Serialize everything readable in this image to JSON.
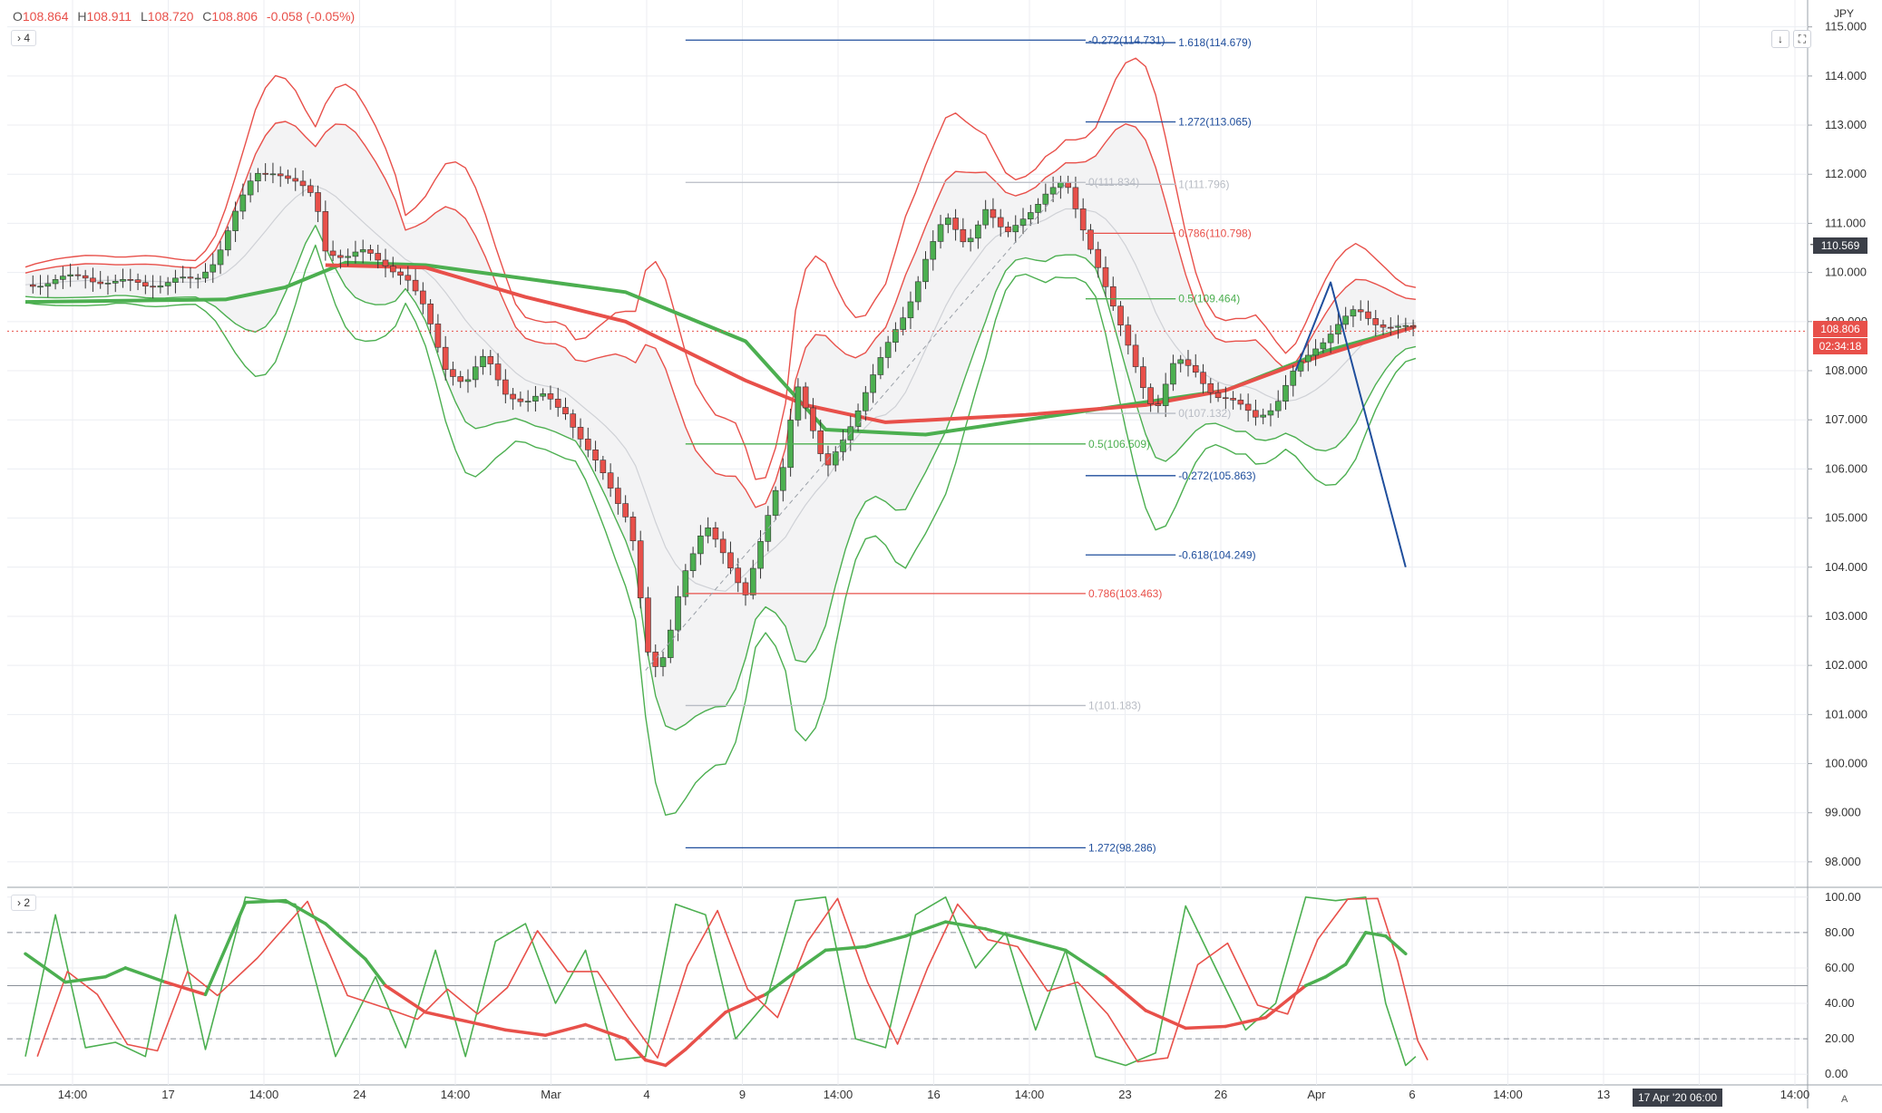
{
  "header": {
    "ohlc": {
      "o_label": "O",
      "o": "108.864",
      "h_label": "H",
      "h": "108.911",
      "l_label": "L",
      "l": "108.720",
      "c_label": "C",
      "c": "108.806",
      "change": "-0.058 (-0.05%)"
    },
    "main_pane_tag": "4",
    "osc_pane_tag": "2",
    "currency": "JPY",
    "down_arrow_icon": "arrow-down-icon",
    "fullscreen_icon": "fullscreen-icon"
  },
  "price_tags": {
    "crosshair_price": "110.569",
    "last_price": "108.806",
    "countdown": "02:34:18"
  },
  "time_tags": {
    "date": "17 Apr '20",
    "time": "06:00"
  },
  "corner_label": "A",
  "colors": {
    "bull": "#4caf50",
    "bear": "#e8504a",
    "fib_blue": "#1f4e9c",
    "fib_red": "#e8504a",
    "fib_green": "#4caf50",
    "fib_gray": "#b8bcc4",
    "grid": "#eceef2"
  },
  "chart_data": [
    {
      "type": "candlestick",
      "title": "",
      "ylim": [
        97.5,
        115.4
      ],
      "y_ticks": [
        "98.000",
        "99.000",
        "100.000",
        "101.000",
        "102.000",
        "103.000",
        "104.000",
        "105.000",
        "106.000",
        "107.000",
        "108.000",
        "109.000",
        "110.000",
        "111.000",
        "112.000",
        "113.000",
        "114.000",
        "115.000"
      ],
      "x_tick_labels": [
        "14:00",
        "17",
        "14:00",
        "24",
        "14:00",
        "Mar",
        "4",
        "9",
        "14:00",
        "16",
        "14:00",
        "23",
        "26",
        "Apr",
        "6",
        "14:00",
        "13",
        "14:00",
        "14:00"
      ],
      "price_path": [
        {
          "t": 0,
          "p": 109.75
        },
        {
          "t": 3,
          "p": 109.85
        },
        {
          "t": 6,
          "p": 109.9
        },
        {
          "t": 9,
          "p": 109.8
        },
        {
          "t": 12,
          "p": 109.75
        },
        {
          "t": 15,
          "p": 109.85
        },
        {
          "t": 17,
          "p": 109.8
        },
        {
          "t": 19,
          "p": 110.3
        },
        {
          "t": 21,
          "p": 111.2
        },
        {
          "t": 23,
          "p": 112.0
        },
        {
          "t": 25,
          "p": 112.1
        },
        {
          "t": 27,
          "p": 111.8
        },
        {
          "t": 29,
          "p": 111.5
        },
        {
          "t": 30,
          "p": 110.5
        },
        {
          "t": 32,
          "p": 110.3
        },
        {
          "t": 34,
          "p": 110.4
        },
        {
          "t": 36,
          "p": 110.2
        },
        {
          "t": 38,
          "p": 109.9
        },
        {
          "t": 40,
          "p": 109.2
        },
        {
          "t": 42,
          "p": 108.1
        },
        {
          "t": 44,
          "p": 107.7
        },
        {
          "t": 46,
          "p": 108.3
        },
        {
          "t": 48,
          "p": 107.6
        },
        {
          "t": 50,
          "p": 107.3
        },
        {
          "t": 52,
          "p": 107.5
        },
        {
          "t": 54,
          "p": 107.2
        },
        {
          "t": 56,
          "p": 106.4
        },
        {
          "t": 58,
          "p": 105.8
        },
        {
          "t": 60,
          "p": 105.1
        },
        {
          "t": 61,
          "p": 104.4
        },
        {
          "t": 62,
          "p": 102.3
        },
        {
          "t": 63,
          "p": 101.9
        },
        {
          "t": 64,
          "p": 102.2
        },
        {
          "t": 65,
          "p": 103.3
        },
        {
          "t": 66,
          "p": 104.0
        },
        {
          "t": 68,
          "p": 104.8
        },
        {
          "t": 70,
          "p": 104.2
        },
        {
          "t": 72,
          "p": 103.5
        },
        {
          "t": 74,
          "p": 104.8
        },
        {
          "t": 76,
          "p": 106.2
        },
        {
          "t": 77,
          "p": 107.9
        },
        {
          "t": 78,
          "p": 107.3
        },
        {
          "t": 80,
          "p": 105.9
        },
        {
          "t": 82,
          "p": 106.7
        },
        {
          "t": 84,
          "p": 107.6
        },
        {
          "t": 86,
          "p": 108.4
        },
        {
          "t": 88,
          "p": 109.2
        },
        {
          "t": 90,
          "p": 110.3
        },
        {
          "t": 92,
          "p": 111.1
        },
        {
          "t": 94,
          "p": 110.6
        },
        {
          "t": 96,
          "p": 111.3
        },
        {
          "t": 98,
          "p": 110.7
        },
        {
          "t": 100,
          "p": 111.2
        },
        {
          "t": 102,
          "p": 111.6
        },
        {
          "t": 104,
          "p": 111.8
        },
        {
          "t": 105,
          "p": 111.3
        },
        {
          "t": 107,
          "p": 110.3
        },
        {
          "t": 109,
          "p": 109.1
        },
        {
          "t": 111,
          "p": 108.1
        },
        {
          "t": 112,
          "p": 107.6
        },
        {
          "t": 113,
          "p": 107.2
        },
        {
          "t": 115,
          "p": 108.2
        },
        {
          "t": 117,
          "p": 108.0
        },
        {
          "t": 119,
          "p": 107.5
        },
        {
          "t": 121,
          "p": 107.3
        },
        {
          "t": 123,
          "p": 107.1
        },
        {
          "t": 125,
          "p": 107.3
        },
        {
          "t": 127,
          "p": 108.0
        },
        {
          "t": 129,
          "p": 108.5
        },
        {
          "t": 131,
          "p": 108.9
        },
        {
          "t": 133,
          "p": 109.2
        },
        {
          "t": 135,
          "p": 109.0
        },
        {
          "t": 137,
          "p": 108.9
        },
        {
          "t": 139,
          "p": 108.8
        }
      ],
      "ma_red": [
        {
          "t": 30,
          "p": 110.15
        },
        {
          "t": 40,
          "p": 110.1
        },
        {
          "t": 50,
          "p": 109.5
        },
        {
          "t": 60,
          "p": 109.0
        },
        {
          "t": 66,
          "p": 108.4
        },
        {
          "t": 72,
          "p": 107.8
        },
        {
          "t": 78,
          "p": 107.3
        },
        {
          "t": 86,
          "p": 106.95
        },
        {
          "t": 100,
          "p": 107.1
        },
        {
          "t": 112,
          "p": 107.3
        },
        {
          "t": 120,
          "p": 107.6
        },
        {
          "t": 128,
          "p": 108.2
        },
        {
          "t": 139,
          "p": 108.9
        }
      ],
      "ma_green": [
        {
          "t": 0,
          "p": 109.4
        },
        {
          "t": 20,
          "p": 109.45
        },
        {
          "t": 26,
          "p": 109.7
        },
        {
          "t": 32,
          "p": 110.2
        },
        {
          "t": 40,
          "p": 110.15
        },
        {
          "t": 60,
          "p": 109.6
        },
        {
          "t": 72,
          "p": 108.6
        },
        {
          "t": 80,
          "p": 106.8
        },
        {
          "t": 90,
          "p": 106.7
        },
        {
          "t": 100,
          "p": 107.0
        },
        {
          "t": 110,
          "p": 107.3
        },
        {
          "t": 120,
          "p": 107.6
        },
        {
          "t": 130,
          "p": 108.4
        },
        {
          "t": 139,
          "p": 108.9
        }
      ],
      "fib_levels": [
        {
          "label": "-0.272(114.731)",
          "value": 114.731,
          "color": "blue",
          "t0": 66,
          "t1": 106
        },
        {
          "label": "1.618(114.679)",
          "value": 114.679,
          "color": "blue",
          "t0": 106,
          "t1": 115
        },
        {
          "label": "1.272(113.065)",
          "value": 113.065,
          "color": "blue",
          "t0": 106,
          "t1": 115
        },
        {
          "label": "0(111.834)",
          "value": 111.834,
          "color": "gray",
          "t0": 66,
          "t1": 106
        },
        {
          "label": "1(111.796)",
          "value": 111.796,
          "color": "gray",
          "t0": 106,
          "t1": 115
        },
        {
          "label": "0.786(110.798)",
          "value": 110.798,
          "color": "red",
          "t0": 106,
          "t1": 115
        },
        {
          "label": "0.5(109.464)",
          "value": 109.464,
          "color": "green",
          "t0": 106,
          "t1": 115
        },
        {
          "label": "0(107.132)",
          "value": 107.132,
          "color": "gray",
          "t0": 106,
          "t1": 115
        },
        {
          "label": "0.5(106.509)",
          "value": 106.509,
          "color": "green",
          "t0": 66,
          "t1": 106
        },
        {
          "label": "-0.272(105.863)",
          "value": 105.863,
          "color": "blue",
          "t0": 106,
          "t1": 115
        },
        {
          "label": "-0.618(104.249)",
          "value": 104.249,
          "color": "blue",
          "t0": 106,
          "t1": 115
        },
        {
          "label": "0.786(103.463)",
          "value": 103.463,
          "color": "red",
          "t0": 66,
          "t1": 106
        },
        {
          "label": "1(101.183)",
          "value": 101.183,
          "color": "gray",
          "t0": 66,
          "t1": 106
        },
        {
          "label": "1.272(98.286)",
          "value": 98.286,
          "color": "blue",
          "t0": 66,
          "t1": 106
        }
      ],
      "projection_path": [
        {
          "t": 127,
          "p": 108.0
        },
        {
          "t": 130.5,
          "p": 109.8
        },
        {
          "t": 138,
          "p": 104.0
        }
      ],
      "last_price_line": 108.806
    },
    {
      "type": "line",
      "title": "",
      "ylim": [
        -5,
        105
      ],
      "y_ticks": [
        "0.00",
        "20.00",
        "40.00",
        "60.00",
        "80.00",
        "100.00"
      ],
      "levels": [
        20,
        50,
        80
      ],
      "rsi_path": [
        {
          "t": 0,
          "p": 68
        },
        {
          "t": 4,
          "p": 52
        },
        {
          "t": 8,
          "p": 55
        },
        {
          "t": 10,
          "p": 60
        },
        {
          "t": 14,
          "p": 52
        },
        {
          "t": 18,
          "p": 45
        },
        {
          "t": 22,
          "p": 97
        },
        {
          "t": 26,
          "p": 98
        },
        {
          "t": 30,
          "p": 85
        },
        {
          "t": 34,
          "p": 65
        },
        {
          "t": 36,
          "p": 50
        },
        {
          "t": 40,
          "p": 35
        },
        {
          "t": 44,
          "p": 30
        },
        {
          "t": 48,
          "p": 25
        },
        {
          "t": 52,
          "p": 22
        },
        {
          "t": 56,
          "p": 28
        },
        {
          "t": 60,
          "p": 20
        },
        {
          "t": 62,
          "p": 8
        },
        {
          "t": 64,
          "p": 5
        },
        {
          "t": 66,
          "p": 14
        },
        {
          "t": 70,
          "p": 35
        },
        {
          "t": 74,
          "p": 45
        },
        {
          "t": 78,
          "p": 62
        },
        {
          "t": 80,
          "p": 70
        },
        {
          "t": 84,
          "p": 72
        },
        {
          "t": 88,
          "p": 78
        },
        {
          "t": 92,
          "p": 86
        },
        {
          "t": 96,
          "p": 82
        },
        {
          "t": 100,
          "p": 76
        },
        {
          "t": 104,
          "p": 70
        },
        {
          "t": 108,
          "p": 55
        },
        {
          "t": 112,
          "p": 36
        },
        {
          "t": 116,
          "p": 26
        },
        {
          "t": 120,
          "p": 27
        },
        {
          "t": 124,
          "p": 32
        },
        {
          "t": 128,
          "p": 50
        },
        {
          "t": 130,
          "p": 55
        },
        {
          "t": 132,
          "p": 62
        },
        {
          "t": 134,
          "p": 80
        },
        {
          "t": 136,
          "p": 78
        },
        {
          "t": 138,
          "p": 68
        }
      ],
      "stoch_k_path": [
        {
          "t": 0,
          "p": 10
        },
        {
          "t": 3,
          "p": 90
        },
        {
          "t": 6,
          "p": 15
        },
        {
          "t": 9,
          "p": 18
        },
        {
          "t": 12,
          "p": 10
        },
        {
          "t": 15,
          "p": 90
        },
        {
          "t": 18,
          "p": 14
        },
        {
          "t": 22,
          "p": 100
        },
        {
          "t": 27,
          "p": 96
        },
        {
          "t": 31,
          "p": 10
        },
        {
          "t": 35,
          "p": 55
        },
        {
          "t": 38,
          "p": 15
        },
        {
          "t": 41,
          "p": 70
        },
        {
          "t": 44,
          "p": 10
        },
        {
          "t": 47,
          "p": 75
        },
        {
          "t": 50,
          "p": 85
        },
        {
          "t": 53,
          "p": 40
        },
        {
          "t": 56,
          "p": 70
        },
        {
          "t": 59,
          "p": 8
        },
        {
          "t": 62,
          "p": 10
        },
        {
          "t": 65,
          "p": 96
        },
        {
          "t": 68,
          "p": 90
        },
        {
          "t": 71,
          "p": 20
        },
        {
          "t": 74,
          "p": 40
        },
        {
          "t": 77,
          "p": 98
        },
        {
          "t": 80,
          "p": 100
        },
        {
          "t": 83,
          "p": 20
        },
        {
          "t": 86,
          "p": 15
        },
        {
          "t": 89,
          "p": 90
        },
        {
          "t": 92,
          "p": 100
        },
        {
          "t": 95,
          "p": 60
        },
        {
          "t": 98,
          "p": 80
        },
        {
          "t": 101,
          "p": 25
        },
        {
          "t": 104,
          "p": 70
        },
        {
          "t": 107,
          "p": 10
        },
        {
          "t": 110,
          "p": 5
        },
        {
          "t": 113,
          "p": 12
        },
        {
          "t": 116,
          "p": 95
        },
        {
          "t": 119,
          "p": 60
        },
        {
          "t": 122,
          "p": 25
        },
        {
          "t": 125,
          "p": 40
        },
        {
          "t": 128,
          "p": 100
        },
        {
          "t": 131,
          "p": 98
        },
        {
          "t": 134,
          "p": 100
        },
        {
          "t": 136,
          "p": 40
        },
        {
          "t": 138,
          "p": 5
        },
        {
          "t": 139,
          "p": 10
        }
      ]
    }
  ]
}
